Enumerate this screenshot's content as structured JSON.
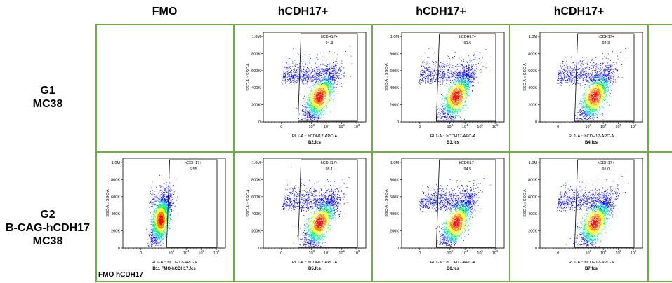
{
  "table": {
    "columns": [
      "FMO",
      "hCDH17+",
      "hCDH17+",
      "hCDH17+"
    ],
    "rows": [
      {
        "label_lines": [
          "G1",
          "MC38"
        ]
      },
      {
        "label_lines": [
          "G2",
          "B-CAG-hCDH17",
          "MC38"
        ]
      }
    ],
    "fmo_caption": "FMO hCDH17"
  },
  "colors": {
    "grid": "#70ad47",
    "density": [
      "#0000ff",
      "#00c8ff",
      "#00ff64",
      "#ffff00",
      "#ff8000",
      "#ff0000"
    ]
  },
  "chart_data": [
    {
      "id": "row1-col2",
      "type": "scatter",
      "file": "B2.fcs",
      "gate": {
        "name": "hCDH17+",
        "percent": "94.3"
      },
      "xlabel": "RL1-A :: hCDH17-APC-A",
      "ylabel": "SSC-A :: SSC-A",
      "yticks": [
        "0",
        "200K",
        "400K",
        "600K",
        "800K",
        "1.0M"
      ],
      "xticks": [
        "0",
        "10^3",
        "10^4",
        "10^5",
        "10^6"
      ],
      "center": {
        "x": 3.5,
        "y": 300000
      }
    },
    {
      "id": "row1-col3",
      "type": "scatter",
      "file": "B3.fcs",
      "gate": {
        "name": "hCDH17+",
        "percent": "91.6"
      },
      "xlabel": "RL1-A :: hCDH17-APC-A",
      "ylabel": "SSC-A :: SSC-A",
      "yticks": [
        "0",
        "200K",
        "400K",
        "600K",
        "800K",
        "1.0M"
      ],
      "xticks": [
        "0",
        "10^3",
        "10^4",
        "10^5",
        "10^6"
      ],
      "center": {
        "x": 3.4,
        "y": 300000
      }
    },
    {
      "id": "row1-col4",
      "type": "scatter",
      "file": "B4.fcs",
      "gate": {
        "name": "hCDH17+",
        "percent": "92.3"
      },
      "xlabel": "RL1-A :: hCDH17-APC-A",
      "ylabel": "SSC-A :: SSC-A",
      "yticks": [
        "0",
        "200K",
        "400K",
        "600K",
        "800K",
        "1.0M"
      ],
      "xticks": [
        "0",
        "10^3",
        "10^4",
        "10^5",
        "10^6"
      ],
      "center": {
        "x": 3.4,
        "y": 300000
      }
    },
    {
      "id": "row2-col1",
      "type": "scatter",
      "file": "B11 FMO-hCDH17.fcs",
      "gate": {
        "name": "hCDH17+",
        "percent": "6.55"
      },
      "xlabel": "RL1-A :: hCDH17-APC-A",
      "ylabel": "SSC-A :: SSC-A",
      "yticks": [
        "0",
        "200K",
        "400K",
        "600K",
        "800K",
        "1.0M"
      ],
      "xticks": [
        "0",
        "10^3",
        "10^4",
        "10^5",
        "10^6"
      ],
      "center": {
        "x": 2.3,
        "y": 330000
      }
    },
    {
      "id": "row2-col2",
      "type": "scatter",
      "file": "B5.fcs",
      "gate": {
        "name": "hCDH17+",
        "percent": "95.1"
      },
      "xlabel": "RL1-A :: hCDH17-APC-A",
      "ylabel": "SSC-A :: SSC-A",
      "yticks": [
        "0",
        "200K",
        "400K",
        "600K",
        "800K",
        "1.0M"
      ],
      "xticks": [
        "0",
        "10^3",
        "10^4",
        "10^5",
        "10^6"
      ],
      "center": {
        "x": 3.5,
        "y": 300000
      }
    },
    {
      "id": "row2-col3",
      "type": "scatter",
      "file": "B6.fcs",
      "gate": {
        "name": "hCDH17+",
        "percent": "94.5"
      },
      "xlabel": "RL1-A :: hCDH17-APC-A",
      "ylabel": "SSC-A :: SSC-A",
      "yticks": [
        "0",
        "200K",
        "400K",
        "600K",
        "800K",
        "1.0M"
      ],
      "xticks": [
        "0",
        "10^3",
        "10^4",
        "10^5",
        "10^6"
      ],
      "center": {
        "x": 3.4,
        "y": 300000
      }
    },
    {
      "id": "row2-col4",
      "type": "scatter",
      "file": "B7.fcs",
      "gate": {
        "name": "hCDH17+",
        "percent": "91.0"
      },
      "xlabel": "RL1-A :: hCDH17-APC-A",
      "ylabel": "SSC-A :: SSC-A",
      "yticks": [
        "0",
        "200K",
        "400K",
        "600K",
        "800K",
        "1.0M"
      ],
      "xticks": [
        "0",
        "10^3",
        "10^4",
        "10^5",
        "10^6"
      ],
      "center": {
        "x": 3.4,
        "y": 300000
      }
    }
  ]
}
